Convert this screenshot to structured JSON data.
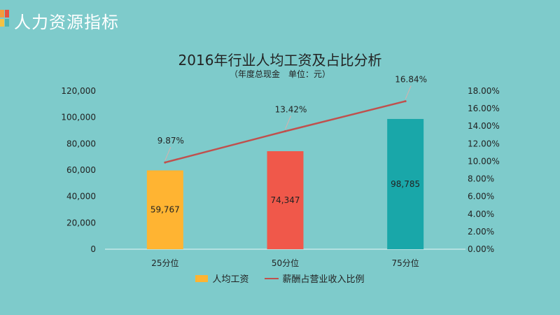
{
  "header": {
    "title": "人力资源指标"
  },
  "chart_data": {
    "type": "bar",
    "title": "2016年行业人均工资及占比分析",
    "subtitle": "（年度总现金　单位：元）",
    "categories": [
      "25分位",
      "50分位",
      "75分位"
    ],
    "series": [
      {
        "name": "人均工资",
        "type": "bar",
        "axis": "left",
        "values": [
          59767,
          74347,
          98785
        ],
        "value_labels": [
          "59,767",
          "74,347",
          "98,785"
        ],
        "colors": [
          "#ffb432",
          "#f0584a",
          "#19a7a9"
        ]
      },
      {
        "name": "薪酬占营业收入比例",
        "type": "line",
        "axis": "right",
        "values": [
          9.87,
          13.42,
          16.84
        ],
        "value_labels": [
          "9.87%",
          "13.42%",
          "16.84%"
        ],
        "color": "#c0504d"
      }
    ],
    "y_left": {
      "min": 0,
      "max": 120000,
      "ticks": [
        "0",
        "20,000",
        "40,000",
        "60,000",
        "80,000",
        "100,000",
        "120,000"
      ]
    },
    "y_right": {
      "min": 0,
      "max": 18,
      "ticks": [
        "0.00%",
        "2.00%",
        "4.00%",
        "6.00%",
        "8.00%",
        "10.00%",
        "12.00%",
        "14.00%",
        "16.00%",
        "18.00%"
      ]
    },
    "grid": false,
    "legend_position": "bottom"
  },
  "colors": {
    "background": "#7ecbcb",
    "logo": [
      "#f39c3c",
      "#e8513f",
      "#4fb3b3",
      "#f5c242"
    ]
  }
}
